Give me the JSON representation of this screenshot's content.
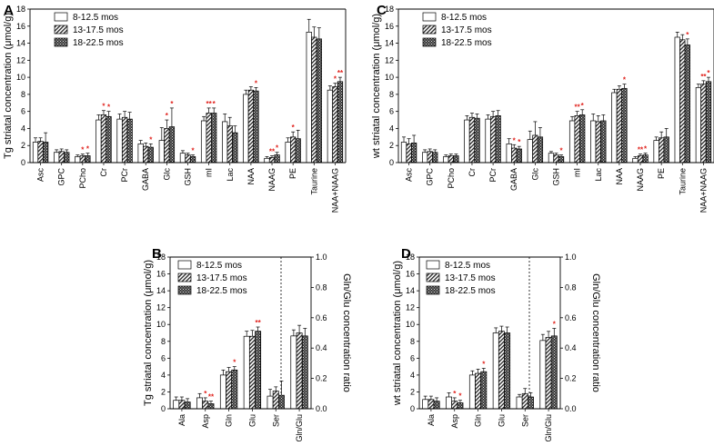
{
  "chart_data": [
    {
      "id": "A",
      "panel_label": "A",
      "type": "bar",
      "ylabel": "Tg striatal concentration (μmol/g)",
      "ylim": [
        0,
        18
      ],
      "yticks": [
        "0",
        "2",
        "4",
        "6",
        "8",
        "10",
        "12",
        "14",
        "16",
        "18"
      ],
      "categories": [
        "Asc",
        "GPC",
        "PCho",
        "Cr",
        "PCr",
        "GABA",
        "Glc",
        "GSH",
        "mI",
        "Lac",
        "NAA",
        "NAAG",
        "PE",
        "Taurine",
        "NAA+NAAG"
      ],
      "series": [
        {
          "name": "8-12.5 mos",
          "pattern": "white",
          "values": [
            2.4,
            1.2,
            0.7,
            5.0,
            5.1,
            2.2,
            2.6,
            1.1,
            4.9,
            4.8,
            8.0,
            0.5,
            2.4,
            15.3,
            8.5
          ],
          "errors": [
            0.5,
            0.3,
            0.2,
            0.6,
            0.6,
            0.4,
            1.5,
            0.3,
            0.5,
            0.9,
            0.5,
            0.2,
            0.5,
            1.5,
            0.5
          ]
        },
        {
          "name": "13-17.5 mos",
          "pattern": "hatch",
          "values": [
            2.5,
            1.3,
            0.8,
            5.6,
            5.3,
            1.9,
            4.0,
            0.9,
            5.8,
            4.3,
            8.5,
            0.6,
            3.0,
            14.7,
            8.9
          ],
          "errors": [
            0.4,
            0.3,
            0.2,
            0.5,
            0.7,
            0.4,
            1.0,
            0.2,
            0.6,
            1.0,
            0.4,
            0.2,
            0.6,
            1.2,
            0.4
          ]
        },
        {
          "name": "18-22.5 mos",
          "pattern": "dots",
          "values": [
            2.4,
            1.2,
            0.8,
            5.4,
            5.1,
            1.8,
            4.2,
            0.7,
            5.8,
            3.5,
            8.4,
            0.9,
            2.8,
            14.5,
            9.5
          ],
          "errors": [
            1.1,
            0.3,
            0.3,
            0.6,
            0.8,
            0.4,
            2.2,
            0.2,
            0.6,
            0.8,
            0.4,
            0.3,
            1.0,
            1.3,
            0.5
          ]
        }
      ],
      "significance": [
        {
          "category": "PCho",
          "series": [
            1,
            2
          ],
          "marks": [
            "*",
            "*"
          ]
        },
        {
          "category": "Cr",
          "series": [
            1,
            2
          ],
          "marks": [
            "*",
            "*"
          ]
        },
        {
          "category": "GABA",
          "series": [
            2
          ],
          "marks": [
            "*"
          ]
        },
        {
          "category": "Glc",
          "series": [
            1,
            2
          ],
          "marks": [
            "*",
            "*"
          ]
        },
        {
          "category": "GSH",
          "series": [
            2
          ],
          "marks": [
            "*"
          ]
        },
        {
          "category": "mI",
          "series": [
            1,
            2
          ],
          "marks": [
            "**",
            "*"
          ]
        },
        {
          "category": "NAA",
          "series": [
            2
          ],
          "marks": [
            "*"
          ]
        },
        {
          "category": "NAAG",
          "series": [
            1,
            2
          ],
          "marks": [
            "**",
            "*"
          ]
        },
        {
          "category": "PE",
          "series": [
            1
          ],
          "marks": [
            "*"
          ]
        },
        {
          "category": "NAA+NAAG",
          "series": [
            1,
            2
          ],
          "marks": [
            "*",
            "**"
          ]
        }
      ],
      "legend_position": "top-left"
    },
    {
      "id": "C",
      "panel_label": "C",
      "type": "bar",
      "ylabel": "wt striatal concentration (μmol/g)",
      "ylim": [
        0,
        18
      ],
      "yticks": [
        "0",
        "2",
        "4",
        "6",
        "8",
        "10",
        "12",
        "14",
        "16",
        "18"
      ],
      "categories": [
        "Asc",
        "GPC",
        "PCho",
        "Cr",
        "PCr",
        "GABA",
        "Glc",
        "GSH",
        "mI",
        "Lac",
        "NAA",
        "NAAG",
        "PE",
        "Taurine",
        "NAA+NAAG"
      ],
      "series": [
        {
          "name": "8-12.5 mos",
          "pattern": "white",
          "values": [
            2.4,
            1.2,
            0.7,
            5.0,
            5.1,
            2.2,
            2.7,
            1.1,
            4.9,
            4.9,
            8.2,
            0.5,
            2.6,
            14.7,
            8.8
          ],
          "errors": [
            0.6,
            0.3,
            0.2,
            0.5,
            0.5,
            0.6,
            1.0,
            0.2,
            0.5,
            0.8,
            0.4,
            0.2,
            0.4,
            0.6,
            0.4
          ]
        },
        {
          "name": "13-17.5 mos",
          "pattern": "hatch",
          "values": [
            2.2,
            1.3,
            0.8,
            5.3,
            5.4,
            1.7,
            3.2,
            0.9,
            5.5,
            4.8,
            8.6,
            0.8,
            2.9,
            14.4,
            9.2
          ],
          "errors": [
            0.6,
            0.3,
            0.2,
            0.5,
            0.6,
            0.4,
            1.6,
            0.2,
            0.5,
            0.7,
            0.4,
            0.2,
            0.7,
            0.6,
            0.4
          ]
        },
        {
          "name": "18-22.5 mos",
          "pattern": "dots",
          "values": [
            2.3,
            1.2,
            0.8,
            5.2,
            5.5,
            1.6,
            3.0,
            0.7,
            5.6,
            4.9,
            8.7,
            0.9,
            3.0,
            13.8,
            9.5
          ],
          "errors": [
            0.9,
            0.3,
            0.2,
            0.5,
            0.6,
            0.3,
            1.1,
            0.2,
            0.6,
            0.7,
            0.5,
            0.2,
            1.0,
            0.7,
            0.5
          ]
        }
      ],
      "significance": [
        {
          "category": "GABA",
          "series": [
            1,
            2
          ],
          "marks": [
            "*",
            "*"
          ]
        },
        {
          "category": "GSH",
          "series": [
            2
          ],
          "marks": [
            "*"
          ]
        },
        {
          "category": "mI",
          "series": [
            1,
            2
          ],
          "marks": [
            "**",
            "*"
          ]
        },
        {
          "category": "NAA",
          "series": [
            2
          ],
          "marks": [
            "*"
          ]
        },
        {
          "category": "NAAG",
          "series": [
            1,
            2
          ],
          "marks": [
            "**",
            "*"
          ]
        },
        {
          "category": "Taurine",
          "series": [
            2
          ],
          "marks": [
            "*"
          ]
        },
        {
          "category": "NAA+NAAG",
          "series": [
            1,
            2
          ],
          "marks": [
            "**",
            "*"
          ]
        }
      ],
      "legend_position": "top-left"
    },
    {
      "id": "B",
      "panel_label": "B",
      "type": "bar",
      "ylabel": "Tg striatal concentration (μmol/g)",
      "ylabel_right": "Gln/Glu concentration ratio",
      "ylim": [
        0,
        18
      ],
      "ylim_right": [
        0,
        1.0
      ],
      "yticks": [
        "0",
        "2",
        "4",
        "6",
        "8",
        "10",
        "12",
        "14",
        "16",
        "18"
      ],
      "yticks_right": [
        "0.0",
        "0.2",
        "0.4",
        "0.6",
        "0.8",
        "1.0"
      ],
      "categories": [
        "Ala",
        "Asp",
        "Gln",
        "Glu",
        "Ser",
        "Gln/Glu"
      ],
      "right_axis_categories": [
        "Gln/Glu"
      ],
      "series": [
        {
          "name": "8-12.5 mos",
          "pattern": "white",
          "values": [
            1.0,
            1.3,
            4.0,
            8.6,
            1.5,
            0.48
          ],
          "errors": [
            0.4,
            0.5,
            0.6,
            0.6,
            0.8,
            0.04
          ]
        },
        {
          "name": "13-17.5 mos",
          "pattern": "hatch",
          "values": [
            1.0,
            0.9,
            4.4,
            8.6,
            2.1,
            0.5
          ],
          "errors": [
            0.4,
            0.4,
            0.5,
            0.7,
            0.5,
            0.05
          ]
        },
        {
          "name": "18-22.5 mos",
          "pattern": "dots",
          "values": [
            0.8,
            0.6,
            4.6,
            9.2,
            1.6,
            0.48
          ],
          "errors": [
            0.4,
            0.3,
            0.4,
            0.5,
            1.7,
            0.05
          ]
        }
      ],
      "significance": [
        {
          "category": "Asp",
          "series": [
            1,
            2
          ],
          "marks": [
            "*",
            "**"
          ]
        },
        {
          "category": "Gln",
          "series": [
            2
          ],
          "marks": [
            "*"
          ]
        },
        {
          "category": "Glu",
          "series": [
            2
          ],
          "marks": [
            "**"
          ]
        }
      ],
      "legend_position": "top-left"
    },
    {
      "id": "D",
      "panel_label": "D",
      "type": "bar",
      "ylabel": "wt striatal concentration (μmol/g)",
      "ylabel_right": "Gln/Glu concentration ratio",
      "ylim": [
        0,
        18
      ],
      "ylim_right": [
        0,
        1.0
      ],
      "yticks": [
        "0",
        "2",
        "4",
        "6",
        "8",
        "10",
        "12",
        "14",
        "16",
        "18"
      ],
      "yticks_right": [
        "0.0",
        "0.2",
        "0.4",
        "0.6",
        "0.8",
        "1.0"
      ],
      "categories": [
        "Ala",
        "Asp",
        "Gln",
        "Glu",
        "Ser",
        "Gln/Glu"
      ],
      "right_axis_categories": [
        "Gln/Glu"
      ],
      "series": [
        {
          "name": "8-12.5 mos",
          "pattern": "white",
          "values": [
            1.1,
            1.4,
            4.0,
            9.0,
            1.4,
            0.45
          ],
          "errors": [
            0.4,
            0.5,
            0.5,
            0.6,
            0.3,
            0.04
          ]
        },
        {
          "name": "13-17.5 mos",
          "pattern": "hatch",
          "values": [
            1.1,
            0.9,
            4.2,
            9.2,
            1.8,
            0.47
          ],
          "errors": [
            0.4,
            0.4,
            0.5,
            0.6,
            0.6,
            0.04
          ]
        },
        {
          "name": "18-22.5 mos",
          "pattern": "dots",
          "values": [
            0.9,
            0.7,
            4.4,
            9.0,
            1.4,
            0.48
          ],
          "errors": [
            0.4,
            0.3,
            0.4,
            0.7,
            0.5,
            0.05
          ]
        }
      ],
      "significance": [
        {
          "category": "Asp",
          "series": [
            1,
            2
          ],
          "marks": [
            "*",
            "*"
          ]
        },
        {
          "category": "Gln",
          "series": [
            2
          ],
          "marks": [
            "*"
          ]
        },
        {
          "category": "Gln/Glu",
          "series": [
            2
          ],
          "marks": [
            "*"
          ]
        }
      ],
      "legend_position": "top-left"
    }
  ]
}
